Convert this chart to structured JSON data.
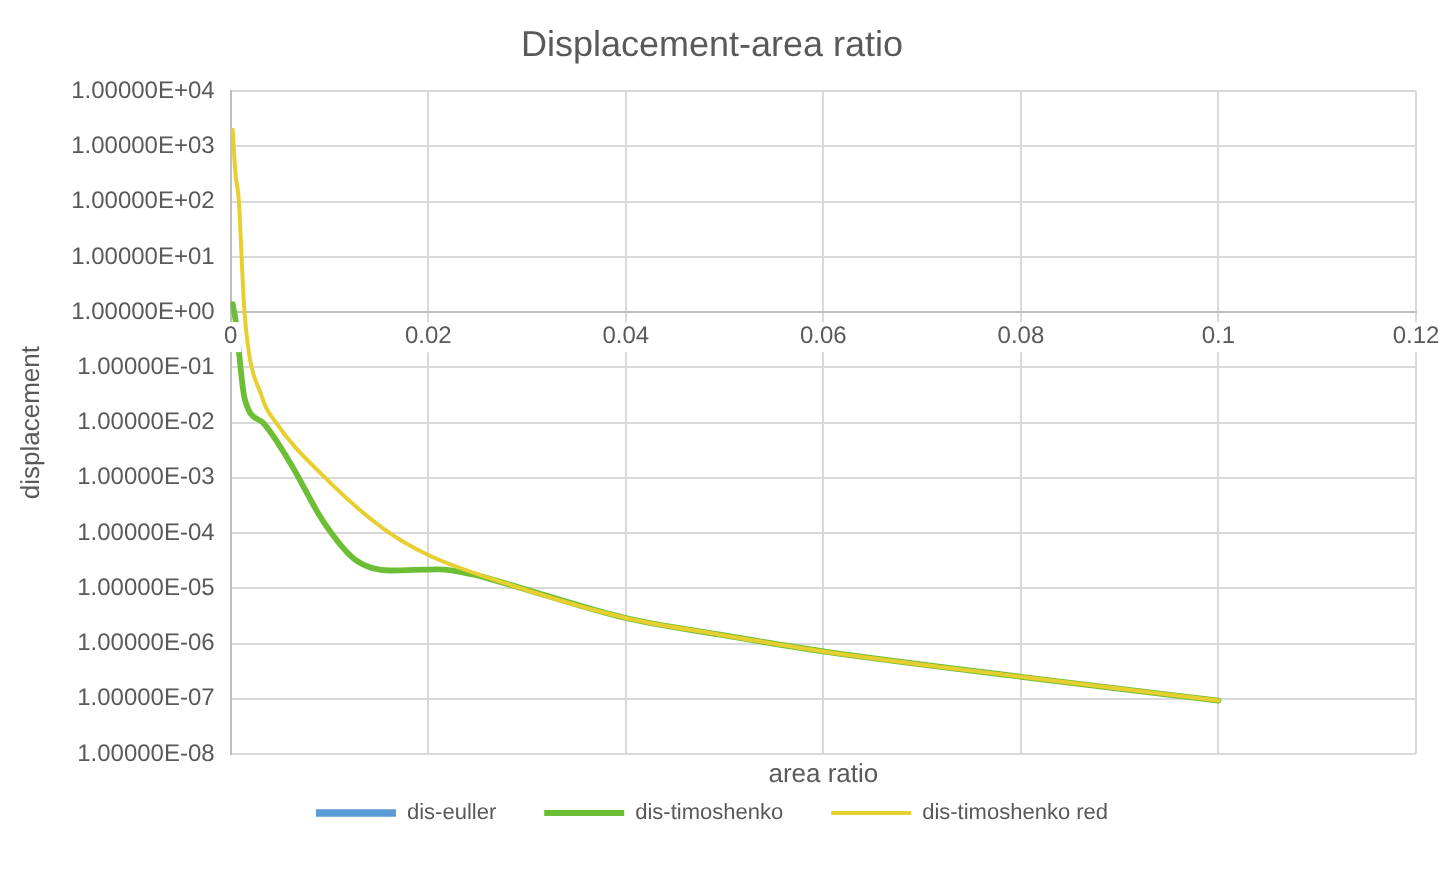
{
  "chart_data": {
    "type": "line",
    "title": "Displacement-area ratio",
    "xlabel": "area ratio",
    "ylabel": "displacement",
    "xlim": [
      0,
      0.12
    ],
    "xticks": [
      0,
      0.02,
      0.04,
      0.06,
      0.08,
      0.1,
      0.12
    ],
    "ylim": [
      1e-08,
      10000
    ],
    "log": "y",
    "yticks": [
      {
        "value": 10000,
        "label": "1.00000E+04"
      },
      {
        "value": 1000,
        "label": "1.00000E+03"
      },
      {
        "value": 100,
        "label": "1.00000E+02"
      },
      {
        "value": 10,
        "label": "1.00000E+01"
      },
      {
        "value": 1,
        "label": "1.00000E+00"
      },
      {
        "value": 0.1,
        "label": "1.00000E-01"
      },
      {
        "value": 0.01,
        "label": "1.00000E-02"
      },
      {
        "value": 0.001,
        "label": "1.00000E-03"
      },
      {
        "value": 0.0001,
        "label": "1.00000E-04"
      },
      {
        "value": 1e-05,
        "label": "1.00000E-05"
      },
      {
        "value": 1e-06,
        "label": "1.00000E-06"
      },
      {
        "value": 1e-07,
        "label": "1.00000E-07"
      },
      {
        "value": 1e-08,
        "label": "1.00000E-08"
      }
    ],
    "grid": true,
    "legend": "bottom",
    "marker": "none",
    "line_style": "solid",
    "series": [
      {
        "name": "dis-euller",
        "color": "#5b9bd5"
      },
      {
        "name": "dis-timoshenko",
        "color": "#6cbf35",
        "x": [
          0.0002,
          0.0005,
          0.0014,
          0.0033,
          0.006,
          0.0094,
          0.0127,
          0.0162,
          0.021,
          0.0244,
          0.028,
          0.04,
          0.049,
          0.06,
          0.08,
          0.1
        ],
        "values": [
          1.4,
          0.7,
          0.028,
          0.0098,
          0.0019,
          0.00016,
          3.2e-05,
          2.1e-05,
          2.2e-05,
          1.8e-05,
          1.2e-05,
          2.9e-06,
          1.5e-06,
          7.2e-07,
          2.5e-07,
          9.3e-08
        ]
      },
      {
        "name": "dis-timoshenko red",
        "color": "#e8cf30",
        "x": [
          0.0002,
          0.0005,
          0.0008,
          0.0014,
          0.0032,
          0.0045,
          0.0094,
          0.0156,
          0.02,
          0.028,
          0.04,
          0.049,
          0.06,
          0.08,
          0.1
        ],
        "values": [
          2000,
          300,
          120,
          1,
          0.028,
          0.0105,
          0.00107,
          0.000115,
          4e-05,
          1.2e-05,
          2.9e-06,
          1.5e-06,
          7.2e-07,
          2.5e-07,
          9.3e-08
        ]
      }
    ]
  }
}
